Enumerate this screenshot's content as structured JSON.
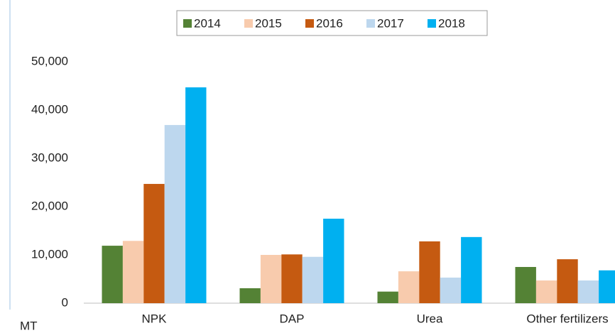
{
  "chart_data": {
    "type": "bar",
    "y_label": "MT",
    "categories": [
      "NPK",
      "DAP",
      "Urea",
      "Other fertilizers"
    ],
    "series": [
      {
        "name": "2014",
        "color": "#548235",
        "values": [
          11900,
          3100,
          2400,
          7500
        ]
      },
      {
        "name": "2015",
        "color": "#f8cbad",
        "values": [
          12900,
          10000,
          6600,
          4700
        ]
      },
      {
        "name": "2016",
        "color": "#c55a11",
        "values": [
          24700,
          10100,
          12800,
          9100
        ]
      },
      {
        "name": "2017",
        "color": "#bdd7ee",
        "values": [
          36900,
          9600,
          5300,
          4700
        ]
      },
      {
        "name": "2018",
        "color": "#00b0f0",
        "values": [
          44700,
          17500,
          13700,
          6800
        ]
      }
    ],
    "ylim": [
      0,
      50000
    ],
    "yticks": [
      0,
      {
        "value": 10000,
        "label": "10,000"
      },
      {
        "value": 20000,
        "label": "20,000"
      },
      {
        "value": 30000,
        "label": "30,000"
      },
      {
        "value": 40000,
        "label": "40,000"
      },
      {
        "value": 50000,
        "label": "50,000"
      }
    ],
    "legend": "top",
    "grid": false
  }
}
